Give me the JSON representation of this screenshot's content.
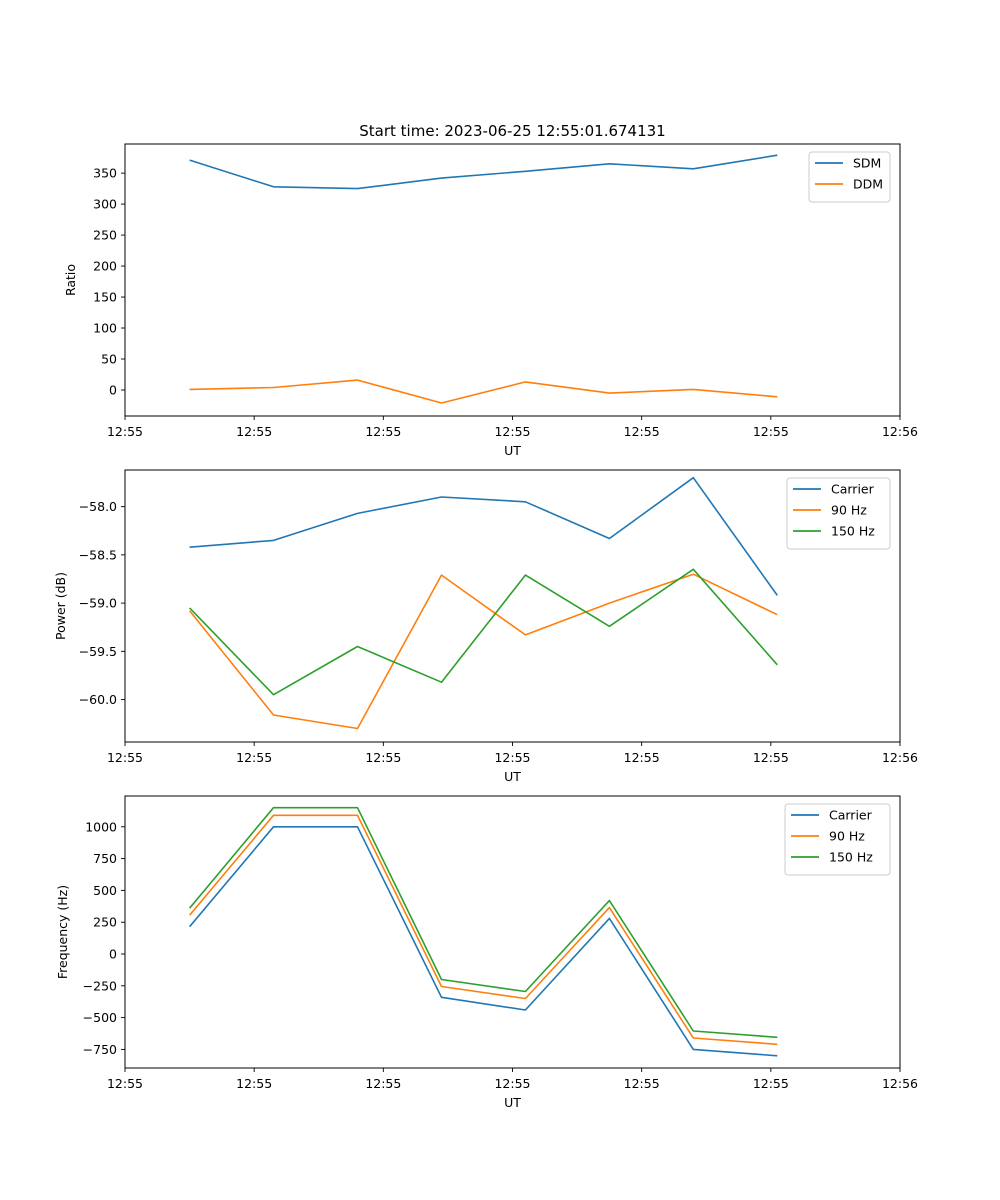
{
  "figure_title": "Start time: 2023-06-25 12:55:01.674131",
  "colors": {
    "blue": "#1f77b4",
    "orange": "#ff7f0e",
    "green": "#2ca02c"
  },
  "chart_data": [
    {
      "type": "line",
      "title": "Start time: 2023-06-25 12:55:01.674131",
      "xlabel": "UT",
      "ylabel": "Ratio",
      "x_tick_labels": [
        "12:55",
        "12:55",
        "12:55",
        "12:55",
        "12:55",
        "12:55",
        "12:56"
      ],
      "y_ticks": [
        0,
        50,
        100,
        150,
        200,
        250,
        300,
        350
      ],
      "y_tick_labels": [
        "0",
        "50",
        "100",
        "150",
        "200",
        "250",
        "300",
        "350"
      ],
      "xlim": [
        0,
        6
      ],
      "ylim": [
        -42,
        397
      ],
      "x": [
        0.5,
        1.15,
        1.8,
        2.45,
        3.1,
        3.75,
        4.4,
        5.05
      ],
      "legend_loc": "upper right",
      "series": [
        {
          "name": "SDM",
          "color": "#1f77b4",
          "values": [
            371,
            328,
            325,
            342,
            353,
            365,
            357,
            379
          ]
        },
        {
          "name": "DDM",
          "color": "#ff7f0e",
          "values": [
            1,
            4,
            16,
            -21,
            13,
            -5,
            1,
            -11
          ]
        }
      ]
    },
    {
      "type": "line",
      "title": "",
      "xlabel": "UT",
      "ylabel": "Power (dB)",
      "x_tick_labels": [
        "12:55",
        "12:55",
        "12:55",
        "12:55",
        "12:55",
        "12:55",
        "12:56"
      ],
      "y_ticks": [
        -60.0,
        -59.5,
        -59.0,
        -58.5,
        -58.0
      ],
      "y_tick_labels": [
        "−60.0",
        "−59.5",
        "−59.0",
        "−58.5",
        "−58.0"
      ],
      "xlim": [
        0,
        6
      ],
      "ylim": [
        -60.44,
        -57.62
      ],
      "x": [
        0.5,
        1.15,
        1.8,
        2.45,
        3.1,
        3.75,
        4.4,
        5.05
      ],
      "legend_loc": "upper right",
      "series": [
        {
          "name": "Carrier",
          "color": "#1f77b4",
          "values": [
            -58.42,
            -58.35,
            -58.07,
            -57.9,
            -57.95,
            -58.33,
            -57.7,
            -58.92
          ]
        },
        {
          "name": "90 Hz",
          "color": "#ff7f0e",
          "values": [
            -59.08,
            -60.16,
            -60.3,
            -58.71,
            -59.33,
            -59.0,
            -58.7,
            -59.12
          ]
        },
        {
          "name": "150 Hz",
          "color": "#2ca02c",
          "values": [
            -59.05,
            -59.95,
            -59.45,
            -59.82,
            -58.71,
            -59.24,
            -58.65,
            -59.64
          ]
        }
      ]
    },
    {
      "type": "line",
      "title": "",
      "xlabel": "UT",
      "ylabel": "Frequency (Hz)",
      "x_tick_labels": [
        "12:55",
        "12:55",
        "12:55",
        "12:55",
        "12:55",
        "12:55",
        "12:56"
      ],
      "y_ticks": [
        -750,
        -500,
        -250,
        0,
        250,
        500,
        750,
        1000
      ],
      "y_tick_labels": [
        "−750",
        "−500",
        "−250",
        "0",
        "250",
        "500",
        "750",
        "1000"
      ],
      "xlim": [
        0,
        6
      ],
      "ylim": [
        -896,
        1242
      ],
      "x": [
        0.5,
        1.15,
        1.8,
        2.45,
        3.1,
        3.75,
        4.4,
        5.05
      ],
      "legend_loc": "upper right",
      "series": [
        {
          "name": "Carrier",
          "color": "#1f77b4",
          "values": [
            215,
            1000,
            1000,
            -340,
            -440,
            280,
            -750,
            -800
          ]
        },
        {
          "name": "90 Hz",
          "color": "#ff7f0e",
          "values": [
            305,
            1090,
            1090,
            -255,
            -350,
            365,
            -660,
            -710
          ]
        },
        {
          "name": "150 Hz",
          "color": "#2ca02c",
          "values": [
            360,
            1150,
            1150,
            -200,
            -295,
            420,
            -605,
            -655
          ]
        }
      ]
    }
  ]
}
